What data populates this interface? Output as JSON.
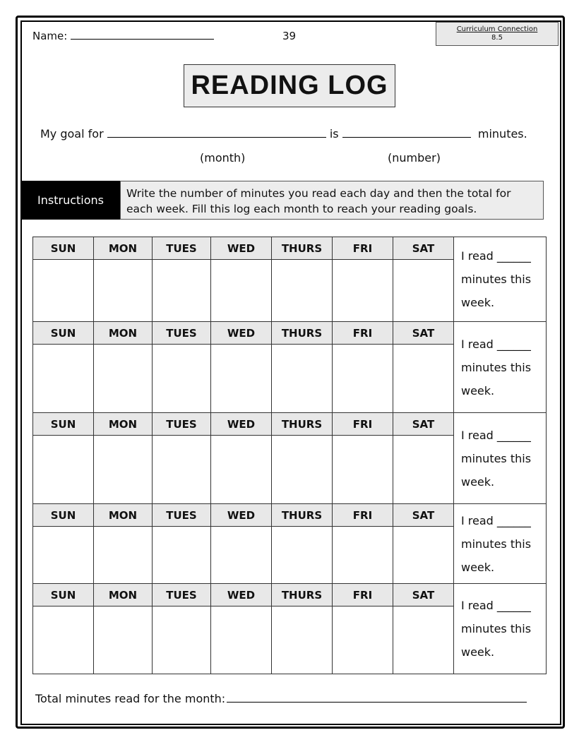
{
  "header": {
    "name_label": "Name:",
    "page_number": "39",
    "curriculum_title": "Curriculum Connection",
    "curriculum_code": "8.5"
  },
  "title": "READING LOG",
  "goal": {
    "prefix": "My goal for",
    "is": "is",
    "suffix": "minutes.",
    "month_hint": "(month)",
    "number_hint": "(number)"
  },
  "instructions": {
    "label": "Instructions",
    "text": "Write the number of minutes you read each day and then the total for each week. Fill this log each month to reach your reading goals."
  },
  "days": [
    "SUN",
    "MON",
    "TUES",
    "WED",
    "THURS",
    "FRI",
    "SAT"
  ],
  "week_total": {
    "line1": "I read ______",
    "line2": "minutes this",
    "line3": "week."
  },
  "weeks": 5,
  "footer": {
    "total_label": "Total minutes read for the month:"
  }
}
